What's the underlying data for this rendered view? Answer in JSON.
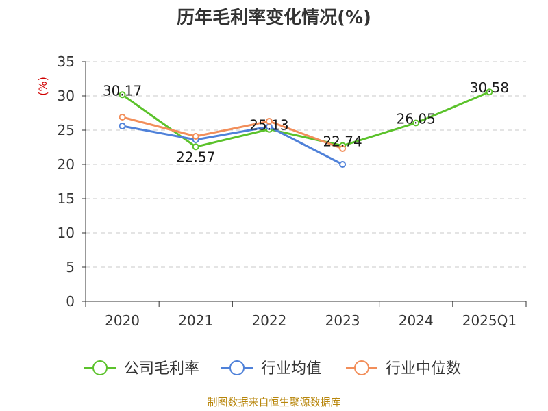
{
  "chart_data": {
    "type": "line",
    "title": "历年毛利率变化情况(%)",
    "ylabel": "(%)",
    "categories": [
      "2020",
      "2021",
      "2022",
      "2023",
      "2024",
      "2025Q1"
    ],
    "ylim": [
      0,
      35
    ],
    "yticks": [
      0,
      5,
      10,
      15,
      20,
      25,
      30,
      35
    ],
    "grid": true,
    "legend_position": "bottom",
    "series": [
      {
        "name": "公司毛利率",
        "color": "#5bc22b",
        "values": [
          30.17,
          22.57,
          25.13,
          22.74,
          26.05,
          30.58
        ],
        "labels": [
          "30.17",
          "22.57",
          "25.13",
          "22.74",
          "26.05",
          "30.58"
        ]
      },
      {
        "name": "行业均值",
        "color": "#4f81d9",
        "values": [
          25.6,
          23.6,
          25.5,
          20.0,
          null,
          null
        ]
      },
      {
        "name": "行业中位数",
        "color": "#f28e5a",
        "values": [
          26.9,
          24.1,
          26.3,
          22.3,
          null,
          null
        ]
      }
    ]
  },
  "source": "制图数据来自恒生聚源数据库"
}
